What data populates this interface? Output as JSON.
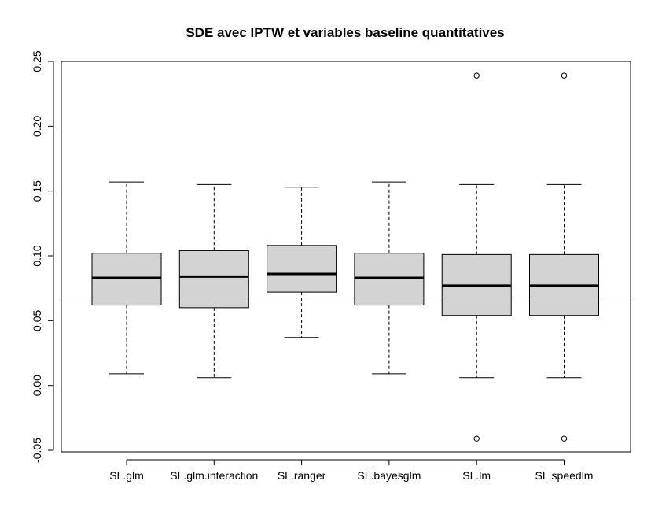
{
  "chart_data": {
    "type": "boxplot",
    "title": "SDE avec IPTW et variables baseline quantitatives",
    "xlabel": "",
    "ylabel": "",
    "ylim": [
      -0.05,
      0.25
    ],
    "yticks": [
      -0.05,
      0.0,
      0.05,
      0.1,
      0.15,
      0.2,
      0.25
    ],
    "ytick_labels": [
      "-0.05",
      "0.00",
      "0.05",
      "0.10",
      "0.15",
      "0.20",
      "0.25"
    ],
    "reference_line": 0.0675,
    "grid": false,
    "colors": {
      "box_fill": "#d3d3d3",
      "stroke": "#000000"
    },
    "categories": [
      "SL.glm",
      "SL.glm.interaction",
      "SL.ranger",
      "SL.bayesglm",
      "SL.lm",
      "SL.speedlm"
    ],
    "boxes": [
      {
        "name": "SL.glm",
        "whisker_low": 0.009,
        "q1": 0.062,
        "median": 0.083,
        "q3": 0.102,
        "whisker_high": 0.157,
        "outliers": []
      },
      {
        "name": "SL.glm.interaction",
        "whisker_low": 0.006,
        "q1": 0.06,
        "median": 0.084,
        "q3": 0.104,
        "whisker_high": 0.155,
        "outliers": []
      },
      {
        "name": "SL.ranger",
        "whisker_low": 0.037,
        "q1": 0.072,
        "median": 0.086,
        "q3": 0.108,
        "whisker_high": 0.153,
        "outliers": []
      },
      {
        "name": "SL.bayesglm",
        "whisker_low": 0.009,
        "q1": 0.062,
        "median": 0.083,
        "q3": 0.102,
        "whisker_high": 0.157,
        "outliers": []
      },
      {
        "name": "SL.lm",
        "whisker_low": 0.006,
        "q1": 0.054,
        "median": 0.077,
        "q3": 0.101,
        "whisker_high": 0.155,
        "outliers": [
          0.239,
          -0.041
        ]
      },
      {
        "name": "SL.speedlm",
        "whisker_low": 0.006,
        "q1": 0.054,
        "median": 0.077,
        "q3": 0.101,
        "whisker_high": 0.155,
        "outliers": [
          0.239,
          -0.041
        ]
      }
    ]
  }
}
